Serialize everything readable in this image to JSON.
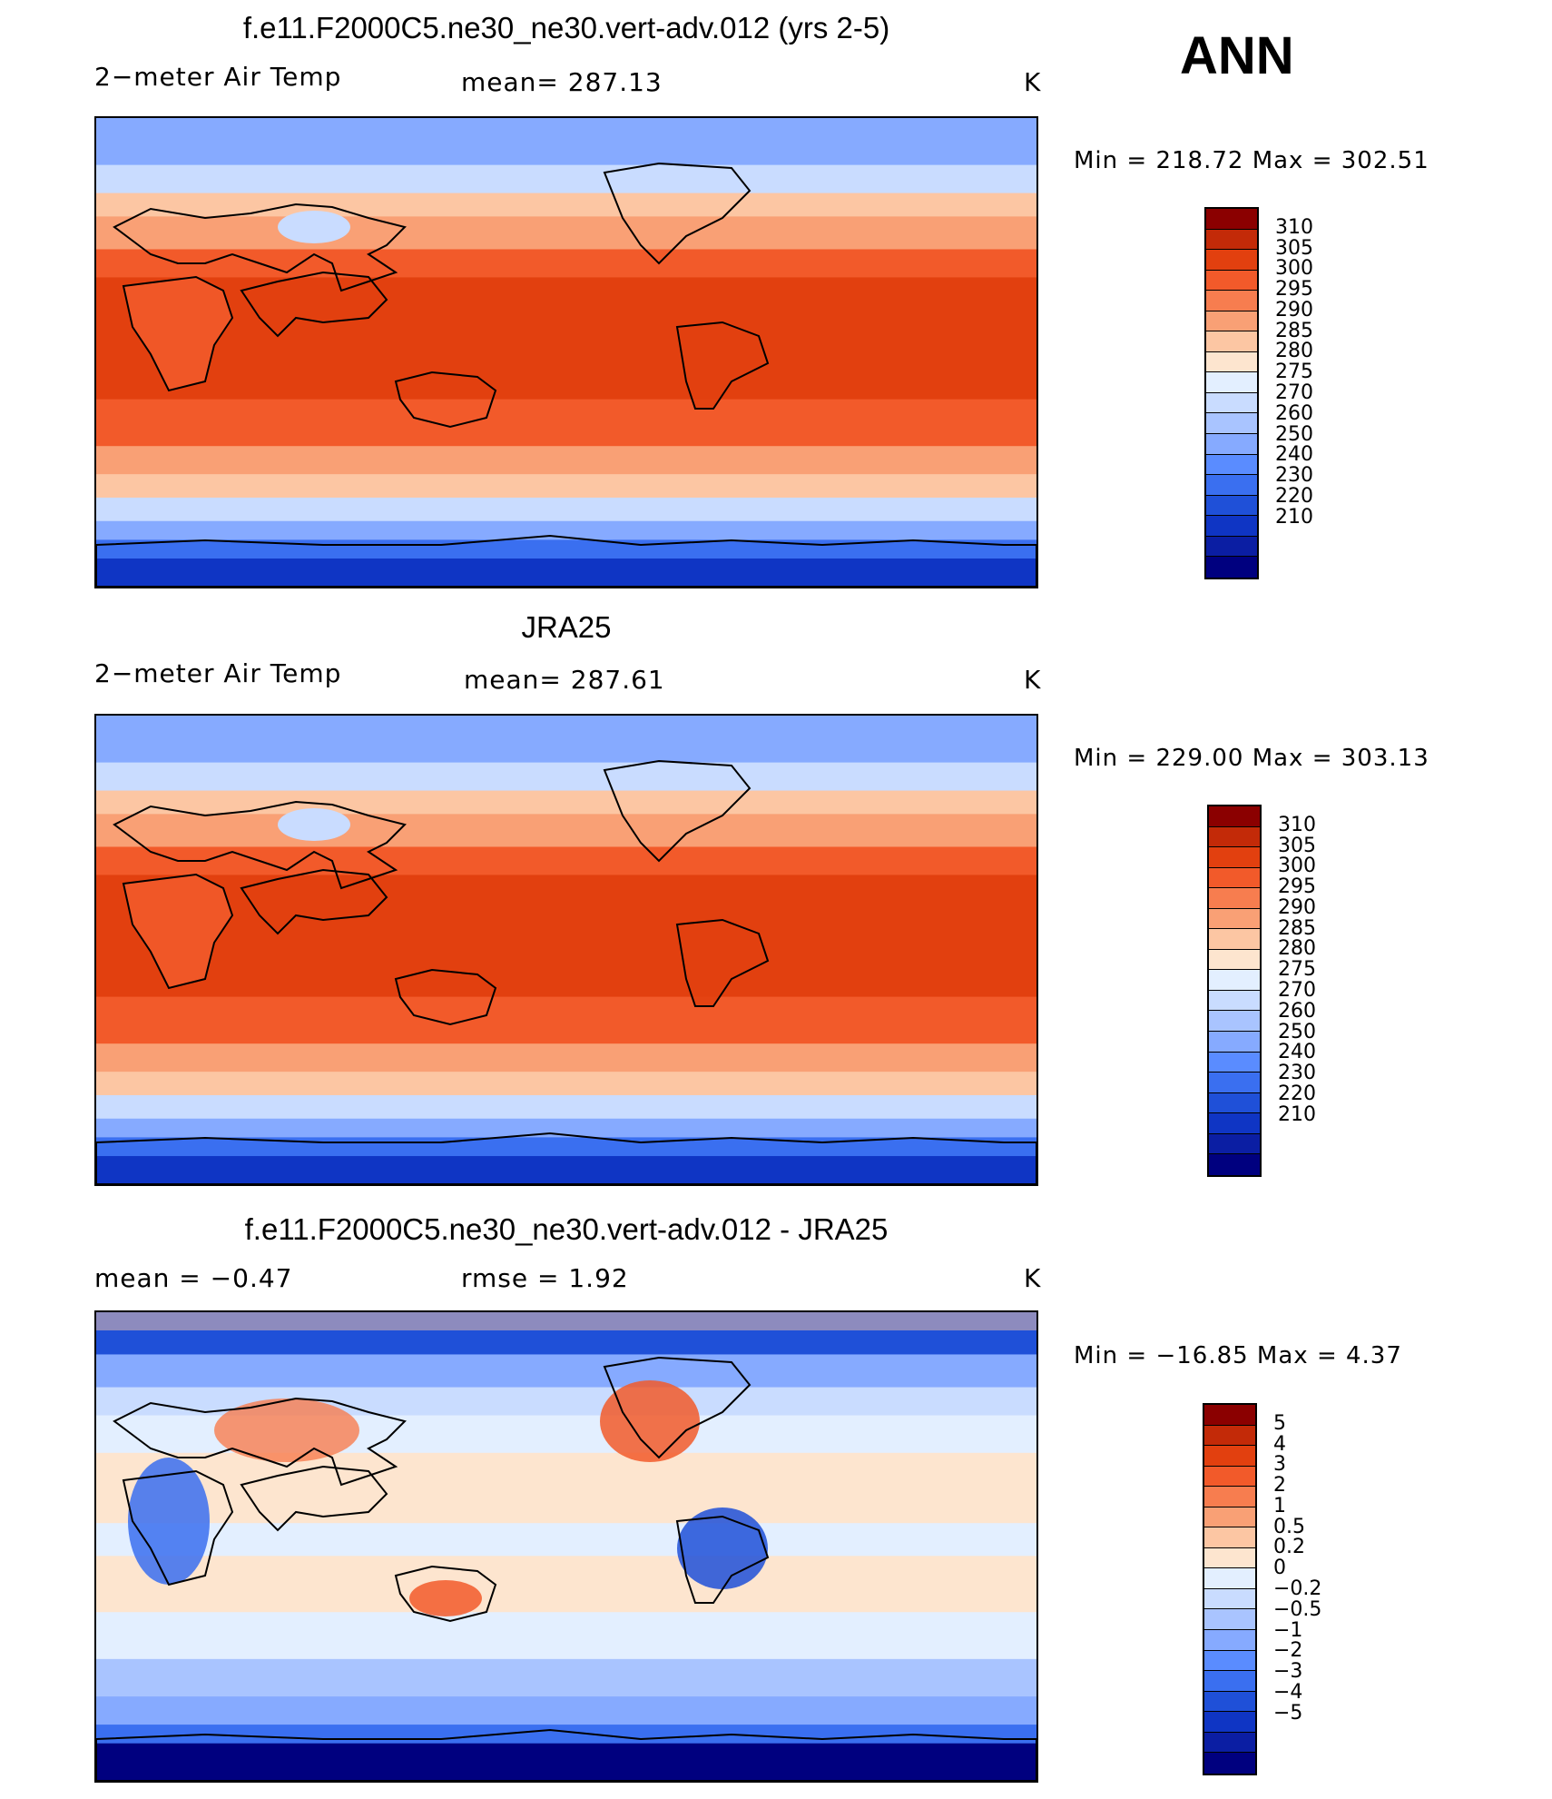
{
  "season": "ANN",
  "colors": {
    "temp_scale": [
      "#00007f",
      "#0b1ea3",
      "#0f35c4",
      "#1f50d8",
      "#3a6ff0",
      "#5a8cff",
      "#86aaff",
      "#a9c4ff",
      "#c9dcff",
      "#e3efff",
      "#fde5cf",
      "#fcc6a3",
      "#f9a075",
      "#f77d4f",
      "#f25a2a",
      "#e2400f",
      "#c32a08",
      "#8b0000"
    ],
    "diff_scale": [
      "#00007f",
      "#0b1ea3",
      "#0f35c4",
      "#1f50d8",
      "#3a6ff0",
      "#5a8cff",
      "#86aaff",
      "#a9c4ff",
      "#c9dcff",
      "#e3efff",
      "#fde5cf",
      "#fcc6a3",
      "#f9a075",
      "#f77d4f",
      "#f25a2a",
      "#e2400f",
      "#c32a08",
      "#8b0000"
    ]
  },
  "chart_data": [
    {
      "type": "heatmap",
      "title": "f.e11.F2000C5.ne30_ne30.vert-adv.012 (yrs 2-5)",
      "variable": "2−meter Air Temp",
      "stat_text": "mean=  287.13",
      "units": "K",
      "mean": 287.13,
      "min": 218.72,
      "max": 302.51,
      "minmax_text": "Min  =  218.72  Max  =  302.51",
      "colorbar_levels": [
        "310",
        "305",
        "300",
        "295",
        "290",
        "285",
        "280",
        "275",
        "270",
        "260",
        "250",
        "240",
        "230",
        "220",
        "210"
      ]
    },
    {
      "type": "heatmap",
      "title": "JRA25",
      "variable": "2−meter Air Temp",
      "stat_text": "mean=  287.61",
      "units": "K",
      "mean": 287.61,
      "min": 229.0,
      "max": 303.13,
      "minmax_text": "Min  =  229.00  Max  =  303.13",
      "colorbar_levels": [
        "310",
        "305",
        "300",
        "295",
        "290",
        "285",
        "280",
        "275",
        "270",
        "260",
        "250",
        "240",
        "230",
        "220",
        "210"
      ]
    },
    {
      "type": "heatmap",
      "title": "f.e11.F2000C5.ne30_ne30.vert-adv.012 - JRA25",
      "variable": "mean  =    −0.47",
      "stat_text": "rmse  =     1.92",
      "units": "K",
      "mean": -0.47,
      "rmse": 1.92,
      "min": -16.85,
      "max": 4.37,
      "minmax_text": "Min  =  −16.85  Max  =     4.37",
      "colorbar_levels": [
        "5",
        "4",
        "3",
        "2",
        "1",
        "0.5",
        "0.2",
        "0",
        "−0.2",
        "−0.5",
        "−1",
        "−2",
        "−3",
        "−4",
        "−5"
      ]
    }
  ]
}
